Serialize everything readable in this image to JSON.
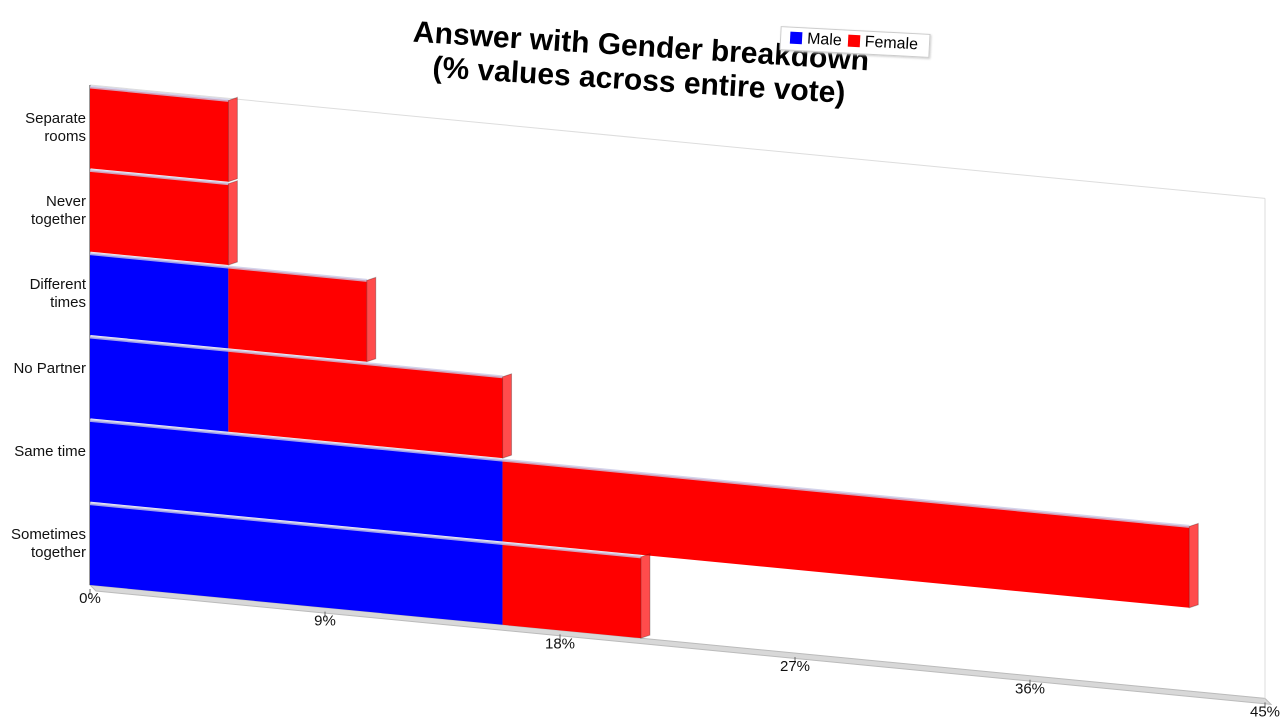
{
  "chart_data": {
    "type": "stacked-bar-horizontal",
    "title": "Answer with Gender breakdown",
    "subtitle": "(% values across entire vote)",
    "categories": [
      "Separate rooms",
      "Never together",
      "Different times",
      "No Partner",
      "Same time",
      "Sometimes together"
    ],
    "series": [
      {
        "name": "Male",
        "color": "#0000ff",
        "values": [
          0,
          0,
          5.3,
          5.3,
          15.8,
          15.8
        ]
      },
      {
        "name": "Female",
        "color": "#ff0000",
        "values": [
          5.3,
          5.3,
          5.3,
          10.5,
          26.3,
          5.3
        ]
      }
    ],
    "xlim": [
      0,
      45
    ],
    "xticks": [
      {
        "value": 0,
        "label": "0%"
      },
      {
        "value": 9,
        "label": "9%"
      },
      {
        "value": 18,
        "label": "18%"
      },
      {
        "value": 27,
        "label": "27%"
      },
      {
        "value": 36,
        "label": "36%"
      },
      {
        "value": 45,
        "label": "45%"
      }
    ]
  }
}
